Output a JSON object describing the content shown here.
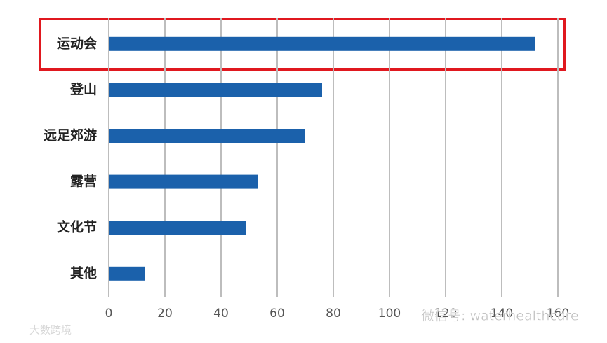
{
  "chart_data": {
    "type": "barh",
    "categories": [
      "运动会",
      "登山",
      "远足郊游",
      "露营",
      "文化节",
      "其他"
    ],
    "values": [
      152,
      76,
      70,
      53,
      49,
      13
    ],
    "color": "#1b61ab",
    "xlim": [
      0,
      160
    ],
    "xticks": [
      0,
      20,
      40,
      60,
      80,
      100,
      120,
      140,
      160
    ],
    "grid": true
  },
  "watermarks": [
    "微信号: waterhealthcare",
    "大数跨境"
  ]
}
